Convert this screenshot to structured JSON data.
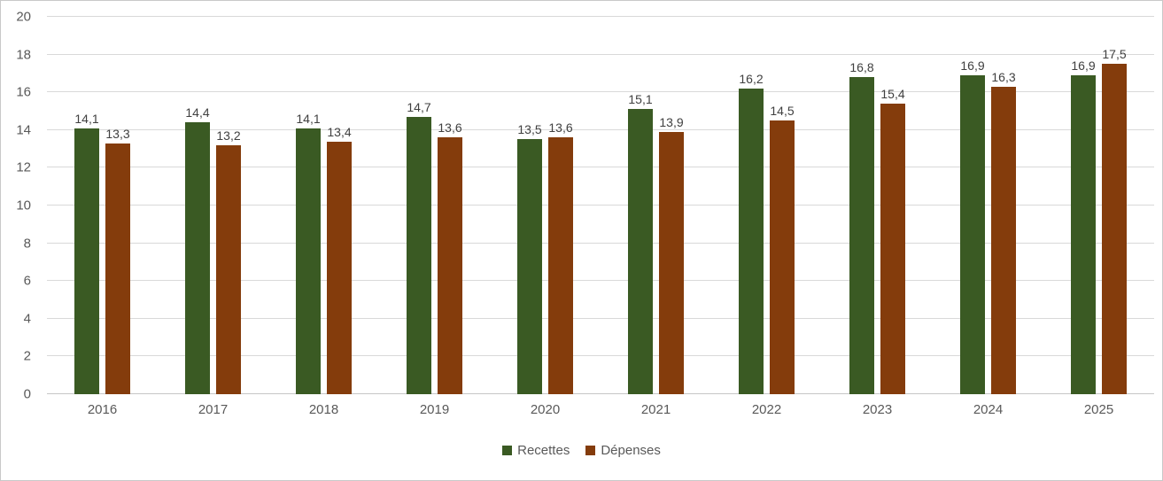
{
  "chart_data": {
    "type": "bar",
    "categories": [
      "2016",
      "2017",
      "2018",
      "2019",
      "2020",
      "2021",
      "2022",
      "2023",
      "2024",
      "2025"
    ],
    "series": [
      {
        "name": "Recettes",
        "color": "#3A5A23",
        "values": [
          14.1,
          14.4,
          14.1,
          14.7,
          13.5,
          15.1,
          16.2,
          16.8,
          16.9,
          16.9
        ],
        "labels": [
          "14,1",
          "14,4",
          "14,1",
          "14,7",
          "13,5",
          "15,1",
          "16,2",
          "16,8",
          "16,9",
          "16,9"
        ]
      },
      {
        "name": "Dépenses",
        "color": "#843C0C",
        "values": [
          13.3,
          13.2,
          13.4,
          13.6,
          13.6,
          13.9,
          14.5,
          15.4,
          16.3,
          17.5
        ],
        "labels": [
          "13,3",
          "13,2",
          "13,4",
          "13,6",
          "13,6",
          "13,9",
          "14,5",
          "15,4",
          "16,3",
          "17,5"
        ]
      }
    ],
    "ylim": [
      0,
      20
    ],
    "ytick_step": 2,
    "ytick_labels": [
      "0",
      "2",
      "4",
      "6",
      "8",
      "10",
      "12",
      "14",
      "16",
      "18",
      "20"
    ],
    "grid": true,
    "legend_position": "bottom",
    "title": "",
    "xlabel": "",
    "ylabel": ""
  },
  "colors": {
    "gridline": "#D9D9D9",
    "axis_line": "#C6C6C6",
    "axis_text": "#595959",
    "data_label_text": "#404040",
    "chart_border": "#C9C9C9",
    "background": "#FFFFFF"
  }
}
